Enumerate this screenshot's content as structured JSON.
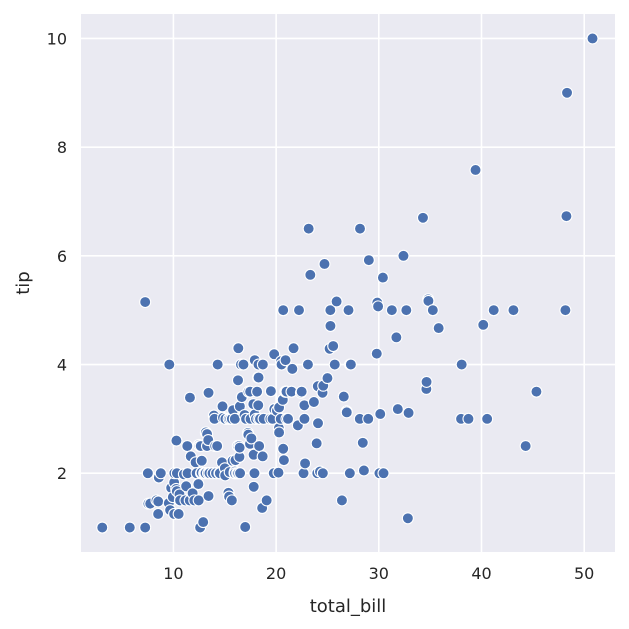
{
  "chart_data": {
    "type": "scatter",
    "xlabel": "total_bill",
    "ylabel": "tip",
    "xlim": [
      1.0,
      53.0
    ],
    "ylim": [
      0.55,
      10.45
    ],
    "xticks": [
      10,
      20,
      30,
      40,
      50
    ],
    "yticks": [
      2,
      4,
      6,
      8,
      10
    ],
    "grid": true,
    "colors": {
      "background": "#EAEAF2",
      "grid": "#FFFFFF",
      "point": "#4C72B0",
      "point_edge": "#FFFFFF"
    },
    "points": [
      [
        3.07,
        1.0
      ],
      [
        5.75,
        1.0
      ],
      [
        7.25,
        1.0
      ],
      [
        7.25,
        5.15
      ],
      [
        7.51,
        2.0
      ],
      [
        7.56,
        1.44
      ],
      [
        7.74,
        1.44
      ],
      [
        8.35,
        1.5
      ],
      [
        8.51,
        1.25
      ],
      [
        8.52,
        1.48
      ],
      [
        8.58,
        1.92
      ],
      [
        8.77,
        2.0
      ],
      [
        9.55,
        1.45
      ],
      [
        9.6,
        4.0
      ],
      [
        9.68,
        1.32
      ],
      [
        9.78,
        1.73
      ],
      [
        9.94,
        1.56
      ],
      [
        10.07,
        1.25
      ],
      [
        10.07,
        1.83
      ],
      [
        10.09,
        2.0
      ],
      [
        10.27,
        1.71
      ],
      [
        10.29,
        2.6
      ],
      [
        10.33,
        1.67
      ],
      [
        10.34,
        2.0
      ],
      [
        10.51,
        1.25
      ],
      [
        10.59,
        1.61
      ],
      [
        10.63,
        1.5
      ],
      [
        10.65,
        1.5
      ],
      [
        11.02,
        1.98
      ],
      [
        11.17,
        1.5
      ],
      [
        11.24,
        1.76
      ],
      [
        11.35,
        2.5
      ],
      [
        11.38,
        2.0
      ],
      [
        11.59,
        1.5
      ],
      [
        11.61,
        3.39
      ],
      [
        11.69,
        2.31
      ],
      [
        11.87,
        1.63
      ],
      [
        12.03,
        1.5
      ],
      [
        12.16,
        2.2
      ],
      [
        12.26,
        2.0
      ],
      [
        12.43,
        1.8
      ],
      [
        12.46,
        1.5
      ],
      [
        12.48,
        2.52
      ],
      [
        12.54,
        2.5
      ],
      [
        12.6,
        1.0
      ],
      [
        12.66,
        2.5
      ],
      [
        12.69,
        2.0
      ],
      [
        12.74,
        2.01
      ],
      [
        12.76,
        2.23
      ],
      [
        12.9,
        1.1
      ],
      [
        13.0,
        2.0
      ],
      [
        13.03,
        2.0
      ],
      [
        13.13,
        2.0
      ],
      [
        13.16,
        2.75
      ],
      [
        13.27,
        2.5
      ],
      [
        13.28,
        2.72
      ],
      [
        13.37,
        2.0
      ],
      [
        13.39,
        2.61
      ],
      [
        13.42,
        1.58
      ],
      [
        13.42,
        3.48
      ],
      [
        13.51,
        2.0
      ],
      [
        13.81,
        2.0
      ],
      [
        13.94,
        3.06
      ],
      [
        14.0,
        3.0
      ],
      [
        14.07,
        2.5
      ],
      [
        14.15,
        2.0
      ],
      [
        14.26,
        2.5
      ],
      [
        14.31,
        4.0
      ],
      [
        14.48,
        2.0
      ],
      [
        14.52,
        2.0
      ],
      [
        14.73,
        2.2
      ],
      [
        14.78,
        3.23
      ],
      [
        14.83,
        3.02
      ],
      [
        15.01,
        2.09
      ],
      [
        15.04,
        1.96
      ],
      [
        15.06,
        3.0
      ],
      [
        15.36,
        1.64
      ],
      [
        15.38,
        3.0
      ],
      [
        15.42,
        1.57
      ],
      [
        15.48,
        2.02
      ],
      [
        15.53,
        3.0
      ],
      [
        15.69,
        1.5
      ],
      [
        15.69,
        3.0
      ],
      [
        15.77,
        2.23
      ],
      [
        15.81,
        3.16
      ],
      [
        15.95,
        2.0
      ],
      [
        15.98,
        2.03
      ],
      [
        15.98,
        3.0
      ],
      [
        16.0,
        2.0
      ],
      [
        16.04,
        2.24
      ],
      [
        16.21,
        2.0
      ],
      [
        16.27,
        2.5
      ],
      [
        16.29,
        3.71
      ],
      [
        16.31,
        2.0
      ],
      [
        16.32,
        4.3
      ],
      [
        16.4,
        2.5
      ],
      [
        16.43,
        2.3
      ],
      [
        16.45,
        2.47
      ],
      [
        16.47,
        3.23
      ],
      [
        16.49,
        2.0
      ],
      [
        16.58,
        4.0
      ],
      [
        16.66,
        3.4
      ],
      [
        16.82,
        4.0
      ],
      [
        16.93,
        3.07
      ],
      [
        16.97,
        1.01
      ],
      [
        16.99,
        1.01
      ],
      [
        17.07,
        3.0
      ],
      [
        17.26,
        2.74
      ],
      [
        17.29,
        2.71
      ],
      [
        17.31,
        3.5
      ],
      [
        17.46,
        2.54
      ],
      [
        17.47,
        3.5
      ],
      [
        17.51,
        3.0
      ],
      [
        17.59,
        2.64
      ],
      [
        17.78,
        3.27
      ],
      [
        17.81,
        2.34
      ],
      [
        17.82,
        1.75
      ],
      [
        17.89,
        2.0
      ],
      [
        17.92,
        4.08
      ],
      [
        17.92,
        3.08
      ],
      [
        18.04,
        3.0
      ],
      [
        18.15,
        3.5
      ],
      [
        18.24,
        3.76
      ],
      [
        18.26,
        3.25
      ],
      [
        18.28,
        4.0
      ],
      [
        18.29,
        3.0
      ],
      [
        18.29,
        3.76
      ],
      [
        18.35,
        2.5
      ],
      [
        18.43,
        3.0
      ],
      [
        18.64,
        1.36
      ],
      [
        18.69,
        2.31
      ],
      [
        18.71,
        4.0
      ],
      [
        18.78,
        3.0
      ],
      [
        19.08,
        1.5
      ],
      [
        19.44,
        3.0
      ],
      [
        19.49,
        3.51
      ],
      [
        19.65,
        3.0
      ],
      [
        19.77,
        2.0
      ],
      [
        19.81,
        4.19
      ],
      [
        19.82,
        3.18
      ],
      [
        20.08,
        3.15
      ],
      [
        20.23,
        2.01
      ],
      [
        20.27,
        2.83
      ],
      [
        20.29,
        3.21
      ],
      [
        20.29,
        2.75
      ],
      [
        20.45,
        3.0
      ],
      [
        20.49,
        4.06
      ],
      [
        20.53,
        4.0
      ],
      [
        20.65,
        3.35
      ],
      [
        20.69,
        2.45
      ],
      [
        20.69,
        5.0
      ],
      [
        20.76,
        2.24
      ],
      [
        20.9,
        3.5
      ],
      [
        20.92,
        4.08
      ],
      [
        20.92,
        3.5
      ],
      [
        21.01,
        3.5
      ],
      [
        21.01,
        3.0
      ],
      [
        21.16,
        3.0
      ],
      [
        21.5,
        3.5
      ],
      [
        21.58,
        3.92
      ],
      [
        21.7,
        4.3
      ],
      [
        22.12,
        2.88
      ],
      [
        22.23,
        5.0
      ],
      [
        22.42,
        3.48
      ],
      [
        22.49,
        3.5
      ],
      [
        22.67,
        2.0
      ],
      [
        22.75,
        3.25
      ],
      [
        22.76,
        3.0
      ],
      [
        22.82,
        2.18
      ],
      [
        23.1,
        4.0
      ],
      [
        23.17,
        6.5
      ],
      [
        23.33,
        5.65
      ],
      [
        23.68,
        3.31
      ],
      [
        23.95,
        2.55
      ],
      [
        24.01,
        2.0
      ],
      [
        24.06,
        3.6
      ],
      [
        24.08,
        2.92
      ],
      [
        24.27,
        2.03
      ],
      [
        24.52,
        3.48
      ],
      [
        24.55,
        2.0
      ],
      [
        24.59,
        3.61
      ],
      [
        24.71,
        5.85
      ],
      [
        25.0,
        3.75
      ],
      [
        25.21,
        4.29
      ],
      [
        25.28,
        5.0
      ],
      [
        25.29,
        4.71
      ],
      [
        25.56,
        4.34
      ],
      [
        25.71,
        4.0
      ],
      [
        25.89,
        5.16
      ],
      [
        26.41,
        1.5
      ],
      [
        26.59,
        3.41
      ],
      [
        26.86,
        3.14
      ],
      [
        26.88,
        3.12
      ],
      [
        27.05,
        5.0
      ],
      [
        27.18,
        2.0
      ],
      [
        27.2,
        4.0
      ],
      [
        27.28,
        4.0
      ],
      [
        28.15,
        3.0
      ],
      [
        28.17,
        6.5
      ],
      [
        28.44,
        2.56
      ],
      [
        28.55,
        2.05
      ],
      [
        28.97,
        3.0
      ],
      [
        29.03,
        5.92
      ],
      [
        29.8,
        4.2
      ],
      [
        29.85,
        5.14
      ],
      [
        29.93,
        5.07
      ],
      [
        30.06,
        2.0
      ],
      [
        30.14,
        3.09
      ],
      [
        30.4,
        5.6
      ],
      [
        30.46,
        2.0
      ],
      [
        31.27,
        5.0
      ],
      [
        31.71,
        4.5
      ],
      [
        31.85,
        3.18
      ],
      [
        32.4,
        6.0
      ],
      [
        32.68,
        5.0
      ],
      [
        32.83,
        1.17
      ],
      [
        32.9,
        3.11
      ],
      [
        34.3,
        6.7
      ],
      [
        34.63,
        3.55
      ],
      [
        34.65,
        3.68
      ],
      [
        34.81,
        5.2
      ],
      [
        34.83,
        5.17
      ],
      [
        35.26,
        5.0
      ],
      [
        35.83,
        4.67
      ],
      [
        38.01,
        3.0
      ],
      [
        38.07,
        4.0
      ],
      [
        38.73,
        3.0
      ],
      [
        39.42,
        7.58
      ],
      [
        40.17,
        4.73
      ],
      [
        40.55,
        3.0
      ],
      [
        41.19,
        5.0
      ],
      [
        43.11,
        5.0
      ],
      [
        44.3,
        2.5
      ],
      [
        45.35,
        3.5
      ],
      [
        48.17,
        5.0
      ],
      [
        48.27,
        6.73
      ],
      [
        48.33,
        9.0
      ],
      [
        50.81,
        10.0
      ]
    ]
  }
}
